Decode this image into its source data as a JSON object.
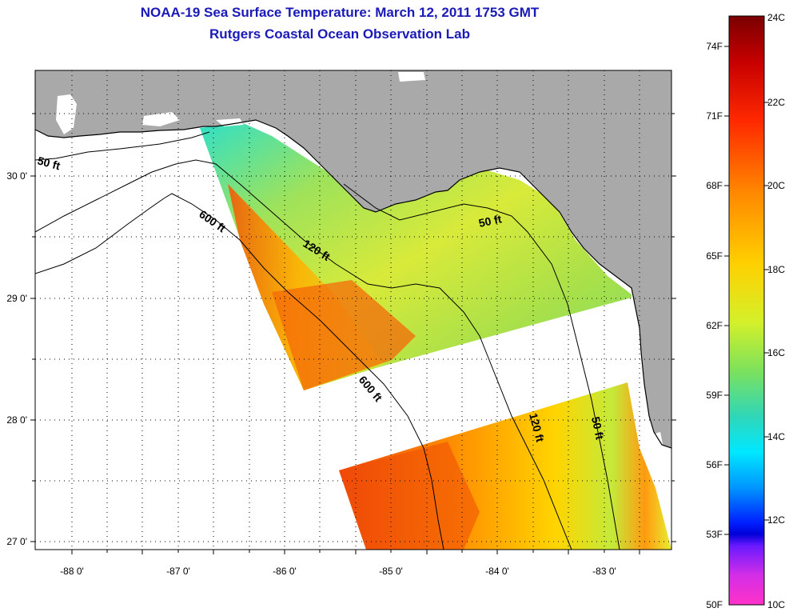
{
  "title": {
    "line1": "NOAA-19 Sea Surface Temperature:  March 12, 2011 1753 GMT",
    "line2": "Rutgers Coastal Ocean Observation Lab"
  },
  "map": {
    "x_ticks": [
      "-88 0'",
      "-87 0'",
      "-86 0'",
      "-85 0'",
      "-84 0'",
      "-83 0'"
    ],
    "y_ticks": [
      "30 0'",
      "29 0'",
      "28 0'",
      "27 0'"
    ],
    "contours": [
      {
        "label": "50 ft"
      },
      {
        "label": "600 ft"
      },
      {
        "label": "120 ft"
      },
      {
        "label": "50 ft"
      },
      {
        "label": "600 ft"
      },
      {
        "label": "120 ft"
      },
      {
        "label": "50 ft"
      }
    ],
    "colors": {
      "land": "#a9a9a9",
      "grid": "#000000"
    }
  },
  "colorbar": {
    "fahrenheit": [
      "74F",
      "71F",
      "68F",
      "65F",
      "62F",
      "59F",
      "56F",
      "53F",
      "50F"
    ],
    "celsius": [
      "24C",
      "22C",
      "20C",
      "18C",
      "16C",
      "14C",
      "12C",
      "10C"
    ]
  }
}
